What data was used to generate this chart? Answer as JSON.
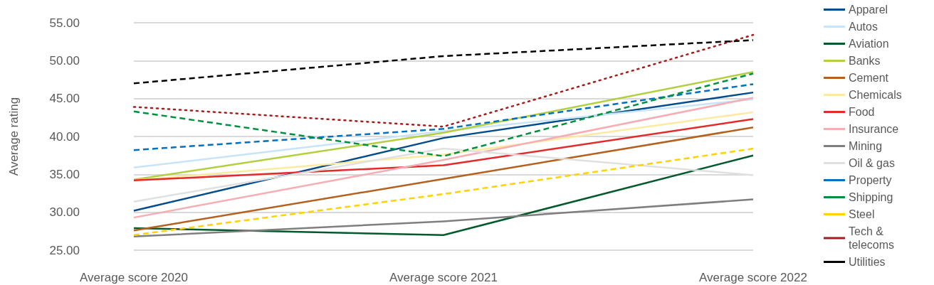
{
  "chart_data": {
    "type": "line",
    "ylabel": "Average rating",
    "categories": [
      "Average score 2020",
      "Average score 2021",
      "Average score 2022"
    ],
    "ylim": [
      25,
      55
    ],
    "yticks": [
      {
        "value": 25,
        "label": "25.00"
      },
      {
        "value": 30,
        "label": "30.00"
      },
      {
        "value": 35,
        "label": "35.00"
      },
      {
        "value": 40,
        "label": "40.00"
      },
      {
        "value": 45,
        "label": "45.00"
      },
      {
        "value": 50,
        "label": "50.00"
      },
      {
        "value": 55,
        "label": "55.00"
      }
    ],
    "grid": "y",
    "legend": "right",
    "marker": "none",
    "series": [
      {
        "name": "Apparel",
        "color": "#004c8c",
        "line_style": "solid",
        "values": [
          30.2,
          39.8,
          45.8
        ]
      },
      {
        "name": "Autos",
        "color": "#c8e4f8",
        "line_style": "solid",
        "values": [
          35.9,
          40.7,
          44.9
        ]
      },
      {
        "name": "Aviation",
        "color": "#005a2b",
        "line_style": "solid",
        "values": [
          27.9,
          27.0,
          37.5
        ]
      },
      {
        "name": "Banks",
        "color": "#b2cf3e",
        "line_style": "solid",
        "values": [
          34.3,
          40.5,
          48.5
        ]
      },
      {
        "name": "Cement",
        "color": "#b5601c",
        "line_style": "solid",
        "values": [
          27.6,
          34.4,
          41.2
        ]
      },
      {
        "name": "Chemicals",
        "color": "#fdeaa0",
        "line_style": "solid",
        "values": [
          34.2,
          37.6,
          43.2
        ]
      },
      {
        "name": "Food",
        "color": "#e52a2a",
        "line_style": "solid",
        "values": [
          34.2,
          36.2,
          42.3
        ]
      },
      {
        "name": "Insurance",
        "color": "#f6adb4",
        "line_style": "solid",
        "values": [
          29.3,
          36.9,
          45.1
        ]
      },
      {
        "name": "Mining",
        "color": "#7f7f7f",
        "line_style": "solid",
        "values": [
          26.8,
          28.8,
          31.7
        ]
      },
      {
        "name": "Oil & gas",
        "color": "#e0e0e0",
        "line_style": "solid",
        "values": [
          31.4,
          38.4,
          34.9
        ]
      },
      {
        "name": "Property",
        "color": "#0070c0",
        "line_style": "dashed",
        "values": [
          38.2,
          41.0,
          46.9
        ]
      },
      {
        "name": "Shipping",
        "color": "#00913f",
        "line_style": "dashed",
        "values": [
          43.3,
          37.4,
          48.3
        ]
      },
      {
        "name": "Steel",
        "color": "#ffd200",
        "line_style": "dashed",
        "values": [
          27.0,
          32.4,
          38.4
        ]
      },
      {
        "name": "Tech & telecoms",
        "color": "#a51c1c",
        "line_style": "dotted",
        "values": [
          43.9,
          41.3,
          53.4
        ]
      },
      {
        "name": "Utilities",
        "color": "#000000",
        "line_style": "dashed",
        "values": [
          47.0,
          50.6,
          52.7
        ]
      }
    ]
  }
}
